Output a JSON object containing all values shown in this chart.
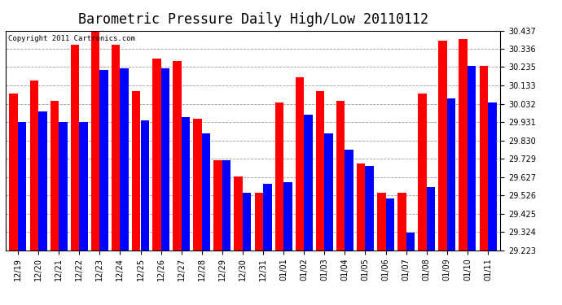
{
  "title": "Barometric Pressure Daily High/Low 20110112",
  "copyright": "Copyright 2011 Cartronics.com",
  "categories": [
    "12/19",
    "12/20",
    "12/21",
    "12/22",
    "12/23",
    "12/24",
    "12/25",
    "12/26",
    "12/27",
    "12/28",
    "12/29",
    "12/30",
    "12/31",
    "01/01",
    "01/02",
    "01/03",
    "01/04",
    "01/05",
    "01/06",
    "01/07",
    "01/08",
    "01/09",
    "01/10",
    "01/11"
  ],
  "high_values": [
    30.09,
    30.16,
    30.05,
    30.36,
    30.43,
    30.36,
    30.1,
    30.28,
    30.27,
    29.95,
    29.72,
    29.63,
    29.54,
    30.04,
    30.18,
    30.1,
    30.05,
    29.7,
    29.54,
    29.54,
    30.09,
    30.38,
    30.39,
    30.24
  ],
  "low_values": [
    29.93,
    29.99,
    29.93,
    29.93,
    30.22,
    30.23,
    29.94,
    30.23,
    29.96,
    29.87,
    29.72,
    29.54,
    29.59,
    29.6,
    29.97,
    29.87,
    29.78,
    29.69,
    29.51,
    29.32,
    29.57,
    30.06,
    30.24,
    30.04
  ],
  "ymin": 29.223,
  "ymax": 30.437,
  "yticks": [
    29.223,
    29.324,
    29.425,
    29.526,
    29.627,
    29.729,
    29.83,
    29.931,
    30.032,
    30.133,
    30.235,
    30.336,
    30.437
  ],
  "high_color": "#FF0000",
  "low_color": "#0000FF",
  "bg_color": "#FFFFFF",
  "grid_color": "#999999",
  "bar_width": 0.42,
  "title_fontsize": 12,
  "tick_fontsize": 7,
  "copyright_fontsize": 6.5
}
